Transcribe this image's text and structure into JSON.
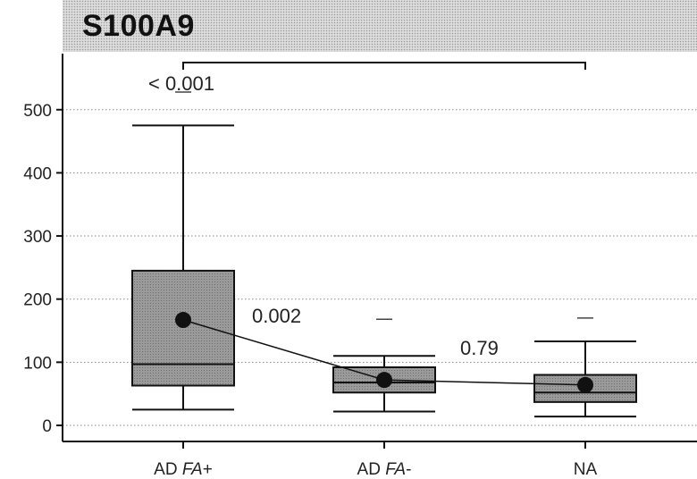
{
  "chart_data": {
    "type": "box",
    "title": "S100A9",
    "xlabel": "",
    "ylabel": "",
    "ylim": [
      -20,
      590
    ],
    "yticks": [
      0,
      100,
      200,
      300,
      400,
      500
    ],
    "grid": true,
    "categories": [
      "AD FA+",
      "AD FA-",
      "NA"
    ],
    "category_labels": [
      {
        "main": "AD ",
        "italic": "FA",
        "suffix": "+"
      },
      {
        "main": "AD ",
        "italic": "FA",
        "suffix": "-"
      },
      {
        "main": "NA",
        "italic": "",
        "suffix": ""
      }
    ],
    "boxes": [
      {
        "category": "AD FA+",
        "whisker_low": 25,
        "q1": 63,
        "median": 97,
        "q3": 245,
        "whisker_high": 475,
        "mean": 167,
        "outlier_marks": [
          528
        ]
      },
      {
        "category": "AD FA-",
        "whisker_low": 22,
        "q1": 52,
        "median": 68,
        "q3": 92,
        "whisker_high": 110,
        "mean": 72,
        "outlier_marks": [
          168
        ]
      },
      {
        "category": "NA",
        "whisker_low": 14,
        "q1": 37,
        "median": 52,
        "q3": 80,
        "whisker_high": 133,
        "mean": 64,
        "outlier_marks": [
          170
        ]
      }
    ],
    "mean_line": [
      167,
      72,
      64
    ],
    "comparisons": [
      {
        "from": "AD FA+",
        "to": "NA",
        "p_value": "< 0.001"
      },
      {
        "from": "AD FA+",
        "to": "AD FA-",
        "p_value": "0.002"
      },
      {
        "from": "AD FA-",
        "to": "NA",
        "p_value": "0.79"
      }
    ],
    "colors": {
      "box_fill": "#9a9a9a",
      "title_band": "#dcdcdc",
      "grid": "#888888",
      "ink": "#111111"
    }
  }
}
